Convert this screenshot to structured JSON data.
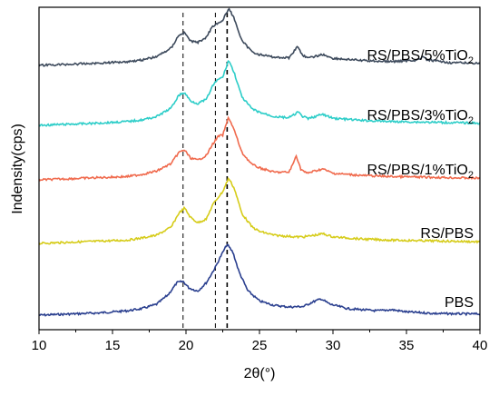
{
  "chart_data": {
    "type": "line",
    "xlabel": "2θ(°)",
    "ylabel": "Indensity(cps)",
    "xlim": [
      10,
      40
    ],
    "x_ticks": [
      "10",
      "15",
      "20",
      "25",
      "30",
      "35",
      "40"
    ],
    "y_ticks_labels": false,
    "reference_lines": [
      {
        "x": 19.8,
        "style": "dashed"
      },
      {
        "x": 22.0,
        "style": "dashed"
      },
      {
        "x": 22.8,
        "style": "dashed"
      }
    ],
    "series": [
      {
        "name": "PBS",
        "color": "#2a3f8f",
        "label_parts": {
          "main": "PBS",
          "sub": ""
        },
        "x": [
          10,
          12,
          14,
          16,
          17,
          18,
          18.8,
          19.4,
          19.8,
          20.2,
          20.8,
          21.4,
          22.0,
          22.4,
          22.8,
          23.2,
          23.6,
          24.2,
          25,
          26,
          27,
          28,
          28.6,
          29.2,
          29.8,
          31,
          33,
          34,
          35,
          37,
          40
        ],
        "values": [
          0.0,
          0.02,
          0.04,
          0.08,
          0.12,
          0.2,
          0.38,
          0.6,
          0.62,
          0.5,
          0.44,
          0.6,
          0.88,
          1.1,
          1.3,
          1.15,
          0.8,
          0.45,
          0.26,
          0.18,
          0.15,
          0.16,
          0.24,
          0.3,
          0.2,
          0.12,
          0.08,
          0.1,
          0.06,
          0.03,
          0.02
        ]
      },
      {
        "name": "RS/PBS",
        "color": "#d6cc1a",
        "label_parts": {
          "main": "RS/PBS",
          "sub": ""
        },
        "x": [
          10,
          12,
          14,
          16,
          17,
          18,
          19,
          19.5,
          19.9,
          20.3,
          20.8,
          21.4,
          21.8,
          22.2,
          22.5,
          22.9,
          23.3,
          23.8,
          24.5,
          25,
          26,
          27,
          27.5,
          28,
          29,
          29.3,
          30,
          32,
          34,
          36,
          38,
          40
        ],
        "values": [
          0.0,
          0.02,
          0.04,
          0.06,
          0.1,
          0.15,
          0.3,
          0.55,
          0.65,
          0.48,
          0.38,
          0.45,
          0.7,
          0.85,
          0.95,
          1.2,
          1.0,
          0.55,
          0.3,
          0.22,
          0.15,
          0.13,
          0.12,
          0.12,
          0.16,
          0.18,
          0.12,
          0.08,
          0.06,
          0.05,
          0.04,
          0.03
        ]
      },
      {
        "name": "RS/PBS/1%TiO2",
        "color": "#f06a4d",
        "label_parts": {
          "main": "RS/PBS/1%TiO",
          "sub": "2"
        },
        "x": [
          10,
          12,
          14,
          16,
          17,
          18,
          19,
          19.5,
          19.9,
          20.3,
          20.8,
          21.4,
          21.8,
          22.2,
          22.5,
          22.9,
          23.3,
          23.8,
          24.5,
          25,
          26,
          27,
          27.3,
          27.5,
          27.8,
          28.2,
          29,
          29.3,
          30,
          32,
          34,
          36,
          38,
          40
        ],
        "values": [
          0.0,
          0.02,
          0.04,
          0.06,
          0.1,
          0.16,
          0.3,
          0.5,
          0.55,
          0.4,
          0.36,
          0.45,
          0.65,
          0.8,
          0.82,
          1.15,
          0.9,
          0.5,
          0.28,
          0.22,
          0.14,
          0.14,
          0.3,
          0.45,
          0.2,
          0.12,
          0.18,
          0.2,
          0.12,
          0.08,
          0.06,
          0.05,
          0.04,
          0.03
        ]
      },
      {
        "name": "RS/PBS/3%TiO2",
        "color": "#2ccdc8",
        "label_parts": {
          "main": "RS/PBS/3%TiO",
          "sub": "2"
        },
        "x": [
          10,
          12,
          14,
          16,
          17,
          18,
          19,
          19.5,
          19.9,
          20.3,
          20.8,
          21.4,
          21.8,
          22.2,
          22.5,
          22.9,
          23.3,
          23.8,
          24.5,
          25,
          26,
          27,
          27.4,
          27.6,
          27.9,
          28.3,
          29,
          29.3,
          30,
          32,
          34,
          36,
          38,
          40
        ],
        "values": [
          0.0,
          0.02,
          0.04,
          0.07,
          0.1,
          0.16,
          0.32,
          0.55,
          0.6,
          0.45,
          0.4,
          0.48,
          0.72,
          0.85,
          0.88,
          1.2,
          0.95,
          0.52,
          0.3,
          0.24,
          0.16,
          0.14,
          0.2,
          0.25,
          0.17,
          0.12,
          0.18,
          0.2,
          0.13,
          0.09,
          0.07,
          0.06,
          0.05,
          0.04
        ]
      },
      {
        "name": "RS/PBS/5%TiO2",
        "color": "#3d4a5c",
        "label_parts": {
          "main": "RS/PBS/5%TiO",
          "sub": "2"
        },
        "x": [
          10,
          12,
          14,
          16,
          17,
          18,
          19,
          19.5,
          19.9,
          20.3,
          20.8,
          21.4,
          21.8,
          22.2,
          22.5,
          22.9,
          23.3,
          23.8,
          24.5,
          25,
          26,
          27,
          27.4,
          27.6,
          27.9,
          28.3,
          29,
          29.3,
          30,
          32,
          34,
          35.8,
          36.1,
          36.4,
          38,
          40
        ],
        "values": [
          0.0,
          0.02,
          0.04,
          0.07,
          0.1,
          0.16,
          0.32,
          0.55,
          0.6,
          0.45,
          0.42,
          0.52,
          0.72,
          0.78,
          0.82,
          1.05,
          0.85,
          0.45,
          0.25,
          0.2,
          0.15,
          0.14,
          0.28,
          0.35,
          0.2,
          0.13,
          0.18,
          0.2,
          0.13,
          0.09,
          0.07,
          0.1,
          0.16,
          0.1,
          0.05,
          0.04
        ]
      }
    ]
  }
}
